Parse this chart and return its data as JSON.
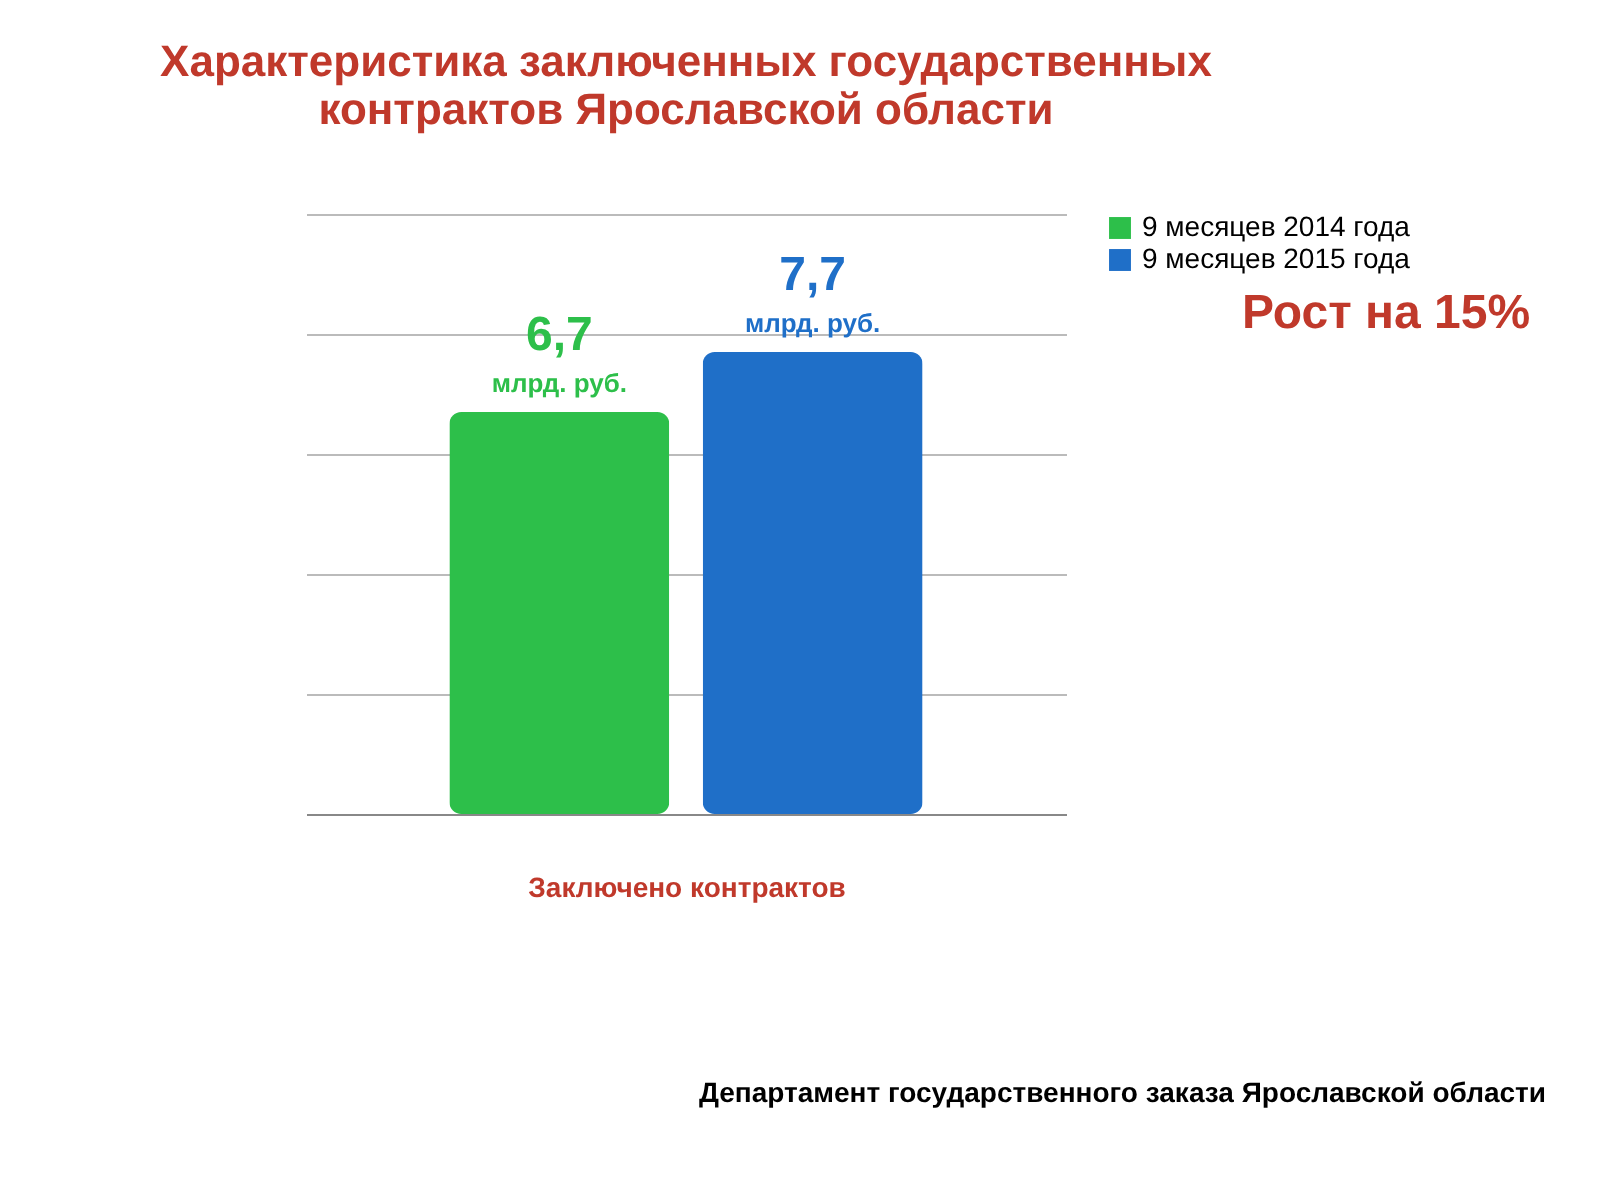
{
  "chart_data": {
    "type": "bar",
    "title": "Характеристика заключенных государственных контрактов Ярославской области",
    "categories": [
      null
    ],
    "xlabel": "Заключено контрактов",
    "series": [
      {
        "name": "9 месяцев 2014 года",
        "color": "#2dbf4a",
        "values": [
          6.7
        ],
        "value_labels": [
          "6,7"
        ]
      },
      {
        "name": "9 месяцев 2015 года",
        "color": "#1f6fc8",
        "values": [
          7.7
        ],
        "value_labels": [
          "7,7"
        ]
      }
    ],
    "ylim": [
      0,
      10
    ],
    "yticks": [
      {
        "value": 0,
        "label": null
      },
      {
        "value": 2,
        "label": null
      },
      {
        "value": 4,
        "label": null
      },
      {
        "value": 6,
        "label": null
      },
      {
        "value": 8,
        "label": null
      },
      {
        "value": 10,
        "label": null
      }
    ],
    "tick_labels": false,
    "grid": "y",
    "legend": "right",
    "annotations": [
      "млрд. руб.",
      "млрд. руб.",
      "Рост на 15%",
      "Департамент государственного заказа Ярославской области"
    ]
  }
}
